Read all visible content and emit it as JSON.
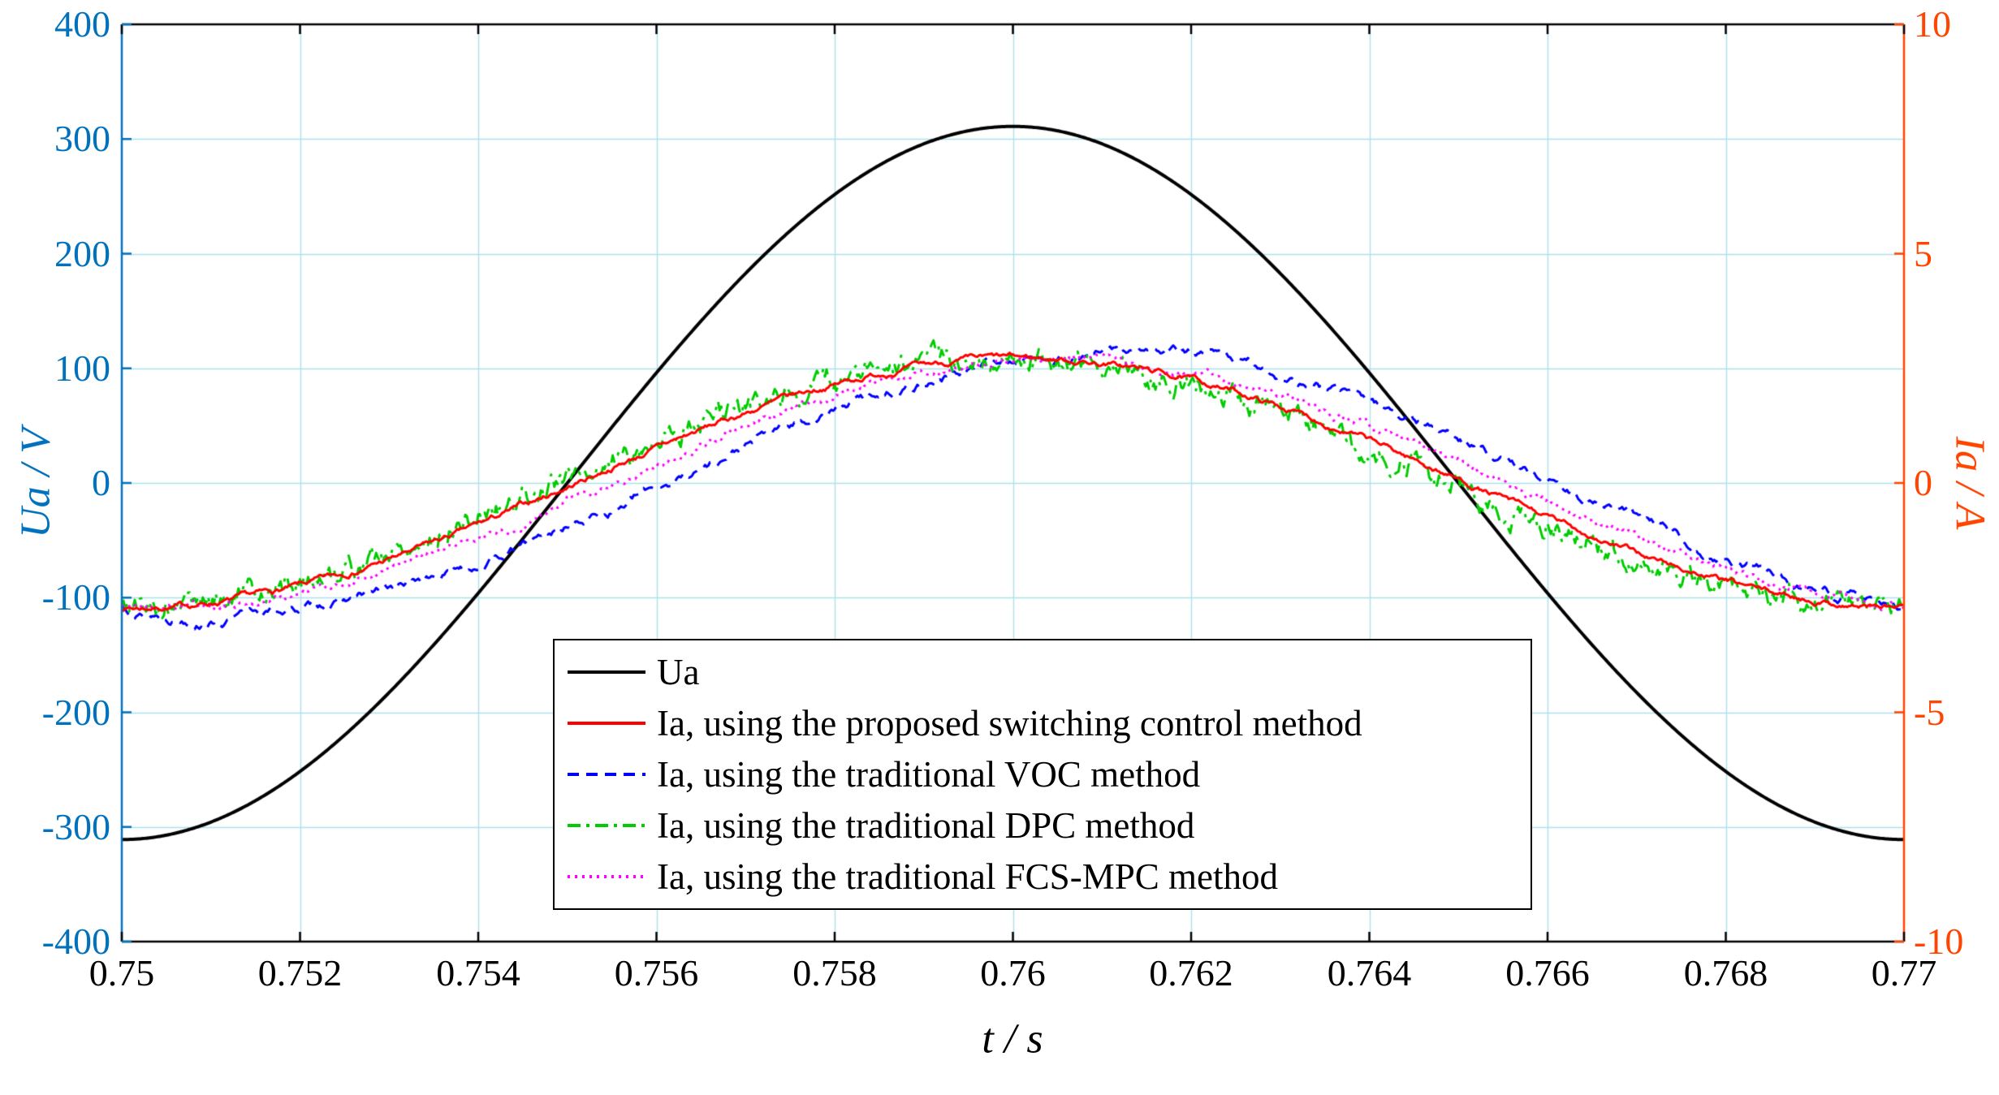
{
  "chart_data": {
    "type": "line",
    "title": "",
    "xlabel": "t / s",
    "ylabel_left": "Ua / V",
    "ylabel_right": "Ia / A",
    "xlim": [
      0.75,
      0.77
    ],
    "ylim_left": [
      -400,
      400
    ],
    "ylim_right": [
      -10,
      10
    ],
    "grid": true,
    "frequency_hz": 50,
    "x_ticks": [
      0.75,
      0.752,
      0.754,
      0.756,
      0.758,
      0.76,
      0.762,
      0.764,
      0.766,
      0.768,
      0.77
    ],
    "x_tick_labels": [
      "0.75",
      "0.752",
      "0.754",
      "0.756",
      "0.758",
      "0.76",
      "0.762",
      "0.764",
      "0.766",
      "0.768",
      "0.77"
    ],
    "y_ticks_left": [
      400,
      300,
      200,
      100,
      0,
      -100,
      -200,
      -300,
      -400
    ],
    "y_tick_labels_left": [
      "400",
      "300",
      "200",
      "100",
      "0",
      "-100",
      "-200",
      "-300",
      "-400"
    ],
    "y_ticks_right": [
      10,
      5,
      0,
      -5,
      -10
    ],
    "y_tick_labels_right": [
      "10",
      "5",
      "0",
      "-5",
      "-10"
    ],
    "colors": {
      "left_axis": "#0072BD",
      "right_axis": "#FF4500",
      "grid": "#ADE0EB",
      "frame": "#000000"
    },
    "legend": {
      "position": "bottom-center",
      "border": "#000000",
      "background": "#FFFFFF"
    },
    "series": [
      {
        "name": "Ua",
        "axis": "left",
        "color": "#000000",
        "dash": "solid",
        "width": 4,
        "waveform": {
          "amplitude": 311,
          "freq_hz": 50,
          "zero_cross_t": 0.755,
          "noise_a": 0,
          "smooth": 0.9,
          "seed": 1
        }
      },
      {
        "name": "Ia, using the proposed switching control method",
        "axis": "right",
        "color": "#FF0000",
        "dash": "solid",
        "width": 3,
        "waveform": {
          "amplitude": 2.72,
          "freq_hz": 50,
          "zero_cross_t": 0.7551,
          "noise_a": 0.05,
          "smooth": 0.9,
          "seed": 7
        }
      },
      {
        "name": "Ia, using the traditional VOC method",
        "axis": "right",
        "color": "#0000FF",
        "dash": "dashed",
        "width": 3,
        "waveform": {
          "amplitude": 2.85,
          "freq_hz": 50,
          "zero_cross_t": 0.7561,
          "noise_a": 0.11,
          "smooth": 0.95,
          "seed": 13
        }
      },
      {
        "name": "Ia, using the traditional DPC method",
        "axis": "right",
        "color": "#00CC00",
        "dash": "dashdot",
        "width": 3,
        "waveform": {
          "amplitude": 2.72,
          "freq_hz": 50,
          "zero_cross_t": 0.7549,
          "noise_a": 0.16,
          "smooth": 0.75,
          "seed": 5
        }
      },
      {
        "name": "Ia, using the traditional FCS-MPC method",
        "axis": "right",
        "color": "#FF00FF",
        "dash": "dotted",
        "width": 3,
        "waveform": {
          "amplitude": 2.7,
          "freq_hz": 50,
          "zero_cross_t": 0.7555,
          "noise_a": 0.07,
          "smooth": 0.9,
          "seed": 21
        }
      }
    ]
  }
}
